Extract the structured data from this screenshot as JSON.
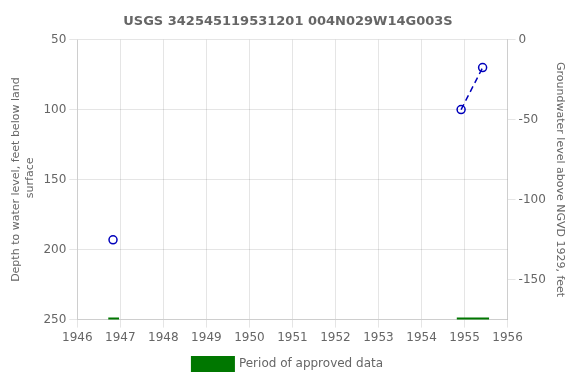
{
  "chart_data": {
    "type": "scatter",
    "title": "USGS 342545119531201 004N029W14G003S",
    "ylabel": "Depth to water level, feet below land\n surface",
    "y2label": "Groundwater level above NGVD 1929, feet",
    "xlim": [
      1946,
      1956
    ],
    "xticks": [
      1946,
      1947,
      1948,
      1949,
      1950,
      1951,
      1952,
      1953,
      1954,
      1955,
      1956
    ],
    "ylim": [
      250,
      50
    ],
    "yticks": [
      50,
      100,
      150,
      200,
      250
    ],
    "y2lim": [
      -175,
      0
    ],
    "y2ticks": [
      0,
      -50,
      -100,
      -150
    ],
    "grid": true,
    "legend": "bottom",
    "series": [
      {
        "type": "scatter",
        "marker": "circle",
        "color": "#0000bb",
        "x": [
          1946.83
        ],
        "values": [
          193
        ]
      },
      {
        "type": "line",
        "line_style": "dashed",
        "marker": "circle",
        "color": "#0000bb",
        "x": [
          1954.92,
          1955.42
        ],
        "values": [
          100,
          70
        ]
      },
      {
        "name": "Period of approved data",
        "type": "segments",
        "color": "#007700",
        "x_start": [
          1946.72,
          1954.82
        ],
        "x_end": [
          1946.97,
          1955.57
        ],
        "values": [
          250,
          250
        ]
      }
    ]
  }
}
